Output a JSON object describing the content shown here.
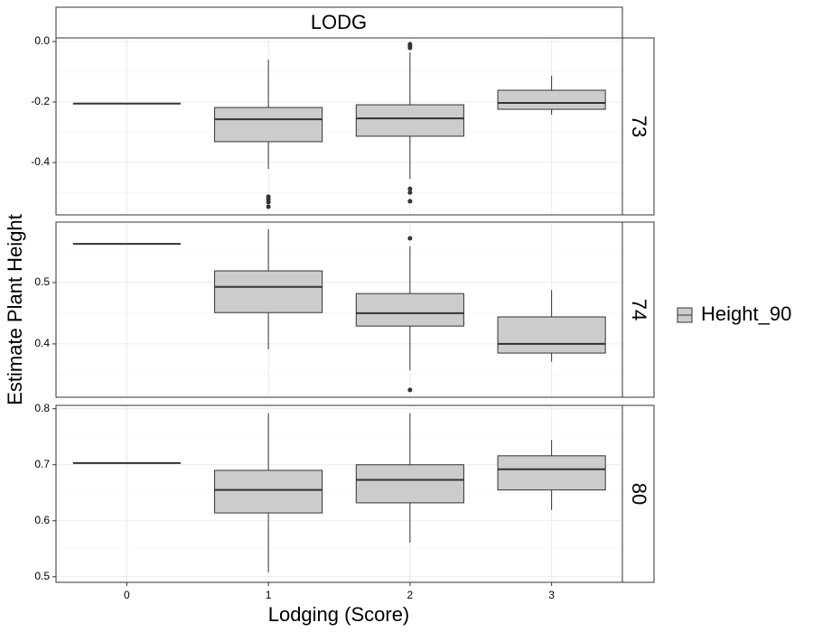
{
  "chart_data": {
    "type": "box",
    "title": "LODG",
    "x_label": "Lodging (Score)",
    "y_label": "Estimate Plant Height",
    "series_name": "Height_90",
    "color": "#cccccc",
    "grid": true,
    "categories": [
      "0",
      "1",
      "2",
      "3"
    ],
    "panels": [
      {
        "label": "73",
        "ylim": [
          -0.573,
          0.012
        ],
        "yticks": [
          {
            "value": 0,
            "label": "0.0"
          },
          -0.2,
          -0.4
        ],
        "boxes": [
          {
            "min": -0.205,
            "q1": -0.205,
            "median": -0.205,
            "q3": -0.205,
            "max": -0.205,
            "outliers": []
          },
          {
            "min": -0.421,
            "q1": -0.331,
            "median": -0.257,
            "q3": -0.218,
            "max": -0.06,
            "outliers": [
              -0.513,
              -0.522,
              -0.531,
              -0.546
            ]
          },
          {
            "min": -0.454,
            "q1": -0.313,
            "median": -0.254,
            "q3": -0.209,
            "max": -0.036,
            "outliers": [
              -0.009,
              -0.015,
              -0.021,
              -0.487,
              -0.499,
              -0.528
            ]
          },
          {
            "min": -0.242,
            "q1": -0.224,
            "median": -0.203,
            "q3": -0.161,
            "max": -0.113,
            "outliers": []
          }
        ]
      },
      {
        "label": "74",
        "ylim": [
          0.313,
          0.5985
        ],
        "yticks": [
          0.5,
          0.4
        ],
        "boxes": [
          {
            "min": 0.563,
            "q1": 0.563,
            "median": 0.563,
            "q3": 0.563,
            "max": 0.563,
            "outliers": []
          },
          {
            "min": 0.391,
            "q1": 0.451,
            "median": 0.493,
            "q3": 0.519,
            "max": 0.587,
            "outliers": []
          },
          {
            "min": 0.357,
            "q1": 0.429,
            "median": 0.45,
            "q3": 0.482,
            "max": 0.559,
            "outliers": [
              0.572,
              0.325
            ]
          },
          {
            "min": 0.371,
            "q1": 0.385,
            "median": 0.4,
            "q3": 0.444,
            "max": 0.488,
            "outliers": []
          }
        ]
      },
      {
        "label": "80",
        "ylim": [
          0.49,
          0.806
        ],
        "yticks": [
          0.8,
          0.7,
          0.6,
          0.5
        ],
        "boxes": [
          {
            "min": 0.703,
            "q1": 0.703,
            "median": 0.703,
            "q3": 0.703,
            "max": 0.703,
            "outliers": []
          },
          {
            "min": 0.508,
            "q1": 0.614,
            "median": 0.655,
            "q3": 0.69,
            "max": 0.792,
            "outliers": []
          },
          {
            "min": 0.561,
            "q1": 0.632,
            "median": 0.673,
            "q3": 0.7,
            "max": 0.792,
            "outliers": []
          },
          {
            "min": 0.619,
            "q1": 0.655,
            "median": 0.692,
            "q3": 0.716,
            "max": 0.744,
            "outliers": []
          }
        ]
      }
    ]
  }
}
